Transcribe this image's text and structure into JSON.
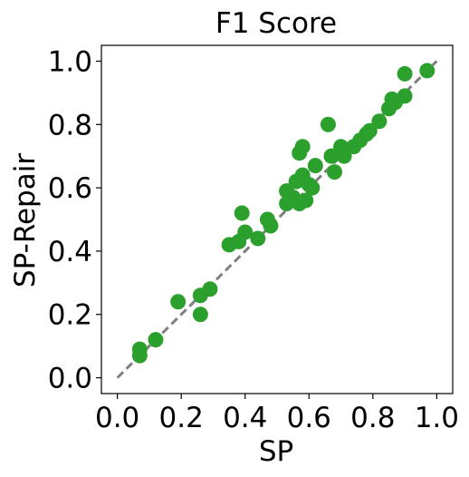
{
  "chart_data": {
    "type": "scatter",
    "title": "F1 Score",
    "xlabel": "SP",
    "ylabel": "SP-Repair",
    "xlim": [
      -0.05,
      1.05
    ],
    "ylim": [
      -0.05,
      1.05
    ],
    "xticks": [
      0.0,
      0.2,
      0.4,
      0.6,
      0.8,
      1.0
    ],
    "yticks": [
      0.0,
      0.2,
      0.4,
      0.6,
      0.8,
      1.0
    ],
    "xtick_labels": [
      "0.0",
      "0.2",
      "0.4",
      "0.6",
      "0.8",
      "1.0"
    ],
    "ytick_labels": [
      "0.0",
      "0.2",
      "0.4",
      "0.6",
      "0.8",
      "1.0"
    ],
    "grid": false,
    "reference_line": {
      "style": "dashed",
      "from": [
        0.0,
        0.0
      ],
      "to": [
        1.0,
        1.0
      ],
      "color": "#808080"
    },
    "marker_color": "#2ca02c",
    "series": [
      {
        "points": [
          [
            0.07,
            0.09
          ],
          [
            0.07,
            0.07
          ],
          [
            0.12,
            0.12
          ],
          [
            0.19,
            0.24
          ],
          [
            0.26,
            0.26
          ],
          [
            0.26,
            0.2
          ],
          [
            0.29,
            0.28
          ],
          [
            0.35,
            0.42
          ],
          [
            0.38,
            0.43
          ],
          [
            0.39,
            0.52
          ],
          [
            0.4,
            0.46
          ],
          [
            0.44,
            0.44
          ],
          [
            0.47,
            0.5
          ],
          [
            0.48,
            0.48
          ],
          [
            0.53,
            0.59
          ],
          [
            0.53,
            0.55
          ],
          [
            0.55,
            0.57
          ],
          [
            0.56,
            0.62
          ],
          [
            0.57,
            0.71
          ],
          [
            0.57,
            0.55
          ],
          [
            0.58,
            0.64
          ],
          [
            0.58,
            0.73
          ],
          [
            0.59,
            0.56
          ],
          [
            0.6,
            0.61
          ],
          [
            0.61,
            0.6
          ],
          [
            0.62,
            0.67
          ],
          [
            0.66,
            0.8
          ],
          [
            0.67,
            0.7
          ],
          [
            0.68,
            0.65
          ],
          [
            0.7,
            0.73
          ],
          [
            0.71,
            0.7
          ],
          [
            0.74,
            0.73
          ],
          [
            0.76,
            0.75
          ],
          [
            0.78,
            0.77
          ],
          [
            0.79,
            0.78
          ],
          [
            0.82,
            0.81
          ],
          [
            0.85,
            0.85
          ],
          [
            0.86,
            0.88
          ],
          [
            0.87,
            0.87
          ],
          [
            0.9,
            0.96
          ],
          [
            0.9,
            0.89
          ],
          [
            0.97,
            0.97
          ]
        ]
      }
    ]
  }
}
